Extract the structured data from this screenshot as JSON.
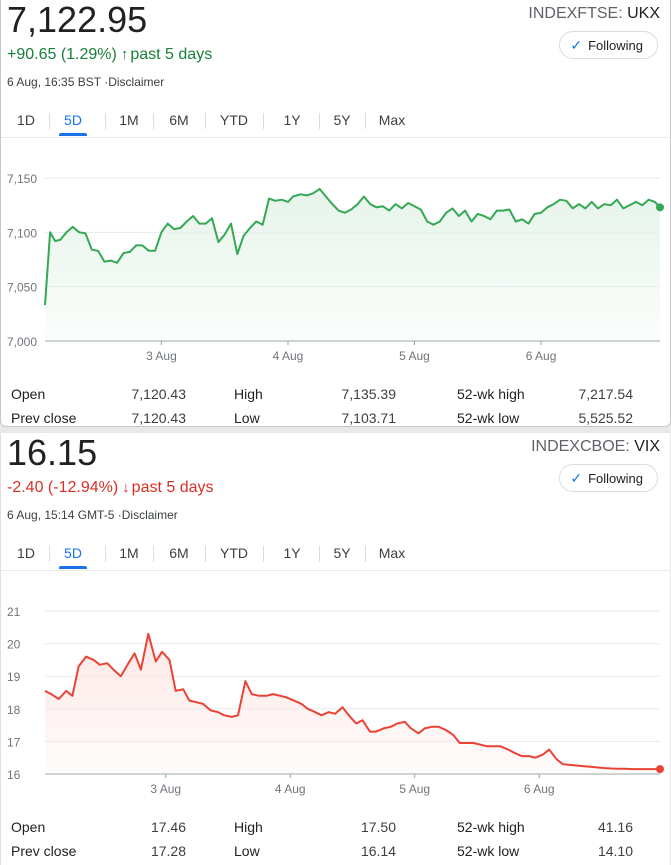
{
  "panels": [
    {
      "price": "7,122.95",
      "change": "+90.65 (1.29%)",
      "direction": "up",
      "change_arrow": "arrow-up-icon",
      "period": "past 5 days",
      "timestamp": "6 Aug, 16:35 BST",
      "disclaimer": "Disclaimer",
      "exchange": "INDEXFTSE:",
      "symbol": "UKX",
      "follow_label": "Following",
      "tabs": [
        "1D",
        "5D",
        "1M",
        "6M",
        "YTD",
        "1Y",
        "5Y",
        "Max"
      ],
      "active_tab": "5D",
      "stats": {
        "open_label": "Open",
        "open": "7,120.43",
        "prev_close_label": "Prev close",
        "prev_close": "7,120.43",
        "high_label": "High",
        "high": "7,135.39",
        "low_label": "Low",
        "low": "7,103.71",
        "wk52_high_label": "52-wk high",
        "wk52_high": "7,217.54",
        "wk52_low_label": "52-wk low",
        "wk52_low": "5,525.52"
      }
    },
    {
      "price": "16.15",
      "change": "-2.40 (-12.94%)",
      "direction": "down",
      "change_arrow": "arrow-down-icon",
      "period": "past 5 days",
      "timestamp": "6 Aug, 15:14 GMT-5",
      "disclaimer": "Disclaimer",
      "exchange": "INDEXCBOE:",
      "symbol": "VIX",
      "follow_label": "Following",
      "tabs": [
        "1D",
        "5D",
        "1M",
        "6M",
        "YTD",
        "1Y",
        "5Y",
        "Max"
      ],
      "active_tab": "5D",
      "stats": {
        "open_label": "Open",
        "open": "17.46",
        "prev_close_label": "Prev close",
        "prev_close": "17.28",
        "high_label": "High",
        "high": "17.50",
        "low_label": "Low",
        "low": "16.14",
        "wk52_high_label": "52-wk high",
        "wk52_high": "41.16",
        "wk52_low_label": "52-wk low",
        "wk52_low": "14.10"
      }
    }
  ],
  "chart_data": [
    {
      "type": "area",
      "color": "#34a853",
      "fill": "#e6f4ea",
      "x_domain": [
        2.08,
        6.94
      ],
      "ylim": [
        7000,
        7150
      ],
      "yticks": [
        7000,
        7050,
        7100,
        7150
      ],
      "ytick_labels": [
        "7,000",
        "7,050",
        "7,100",
        "7,150"
      ],
      "xticks": [
        3,
        4,
        5,
        6
      ],
      "xtick_labels": [
        "3 Aug",
        "4 Aug",
        "5 Aug",
        "6 Aug"
      ],
      "grid": true,
      "series": [
        {
          "x": [
            2.08,
            2.12,
            2.16,
            2.2,
            2.25,
            2.3,
            2.35,
            2.4,
            2.45,
            2.5,
            2.55,
            2.6,
            2.65,
            2.7,
            2.75,
            2.8,
            2.85,
            2.9,
            2.95,
            3.0,
            3.05,
            3.1,
            3.15,
            3.2,
            3.25,
            3.3,
            3.35,
            3.4,
            3.45,
            3.5,
            3.55,
            3.6,
            3.65,
            3.7,
            3.75,
            3.8,
            3.85,
            3.9,
            3.95,
            4.0,
            4.04,
            4.1,
            4.15,
            4.2,
            4.25,
            4.3,
            4.35,
            4.4,
            4.45,
            4.5,
            4.55,
            4.6,
            4.65,
            4.7,
            4.75,
            4.8,
            4.85,
            4.9,
            4.95,
            5.0,
            5.05,
            5.1,
            5.15,
            5.2,
            5.25,
            5.3,
            5.35,
            5.4,
            5.45,
            5.5,
            5.55,
            5.6,
            5.65,
            5.7,
            5.75,
            5.8,
            5.85,
            5.9,
            5.95,
            6.0,
            6.05,
            6.1,
            6.15,
            6.2,
            6.25,
            6.3,
            6.35,
            6.4,
            6.45,
            6.5,
            6.55,
            6.6,
            6.65,
            6.7,
            6.75,
            6.8,
            6.85,
            6.9,
            6.94
          ],
          "y": [
            7033,
            7100,
            7092,
            7093,
            7100,
            7105,
            7100,
            7099,
            7084,
            7083,
            7073,
            7074,
            7072,
            7081,
            7082,
            7088,
            7088,
            7083,
            7083,
            7100,
            7108,
            7103,
            7104,
            7110,
            7115,
            7108,
            7108,
            7113,
            7091,
            7098,
            7108,
            7080,
            7097,
            7104,
            7110,
            7107,
            7131,
            7129,
            7130,
            7128,
            7133,
            7135,
            7134,
            7136,
            7140,
            7133,
            7126,
            7120,
            7118,
            7121,
            7126,
            7133,
            7126,
            7123,
            7124,
            7120,
            7126,
            7122,
            7127,
            7124,
            7121,
            7110,
            7107,
            7110,
            7118,
            7122,
            7115,
            7120,
            7110,
            7117,
            7115,
            7112,
            7120,
            7120,
            7121,
            7110,
            7112,
            7108,
            7117,
            7118,
            7123,
            7126,
            7130,
            7129,
            7122,
            7126,
            7122,
            7128,
            7122,
            7126,
            7125,
            7130,
            7122,
            7125,
            7128,
            7125,
            7130,
            7128,
            7123
          ]
        }
      ]
    },
    {
      "type": "area",
      "color": "#ea4335",
      "fill": "#fce8e6",
      "x_domain": [
        2.03,
        6.97
      ],
      "ylim": [
        16,
        21
      ],
      "yticks": [
        16,
        17,
        18,
        19,
        20,
        21
      ],
      "ytick_labels": [
        "16",
        "17",
        "18",
        "19",
        "20",
        "21"
      ],
      "xticks": [
        3,
        4,
        5,
        6
      ],
      "xtick_labels": [
        "3 Aug",
        "4 Aug",
        "5 Aug",
        "6 Aug"
      ],
      "grid": true,
      "series": [
        {
          "x": [
            2.03,
            2.08,
            2.14,
            2.2,
            2.25,
            2.3,
            2.36,
            2.42,
            2.47,
            2.53,
            2.58,
            2.64,
            2.7,
            2.75,
            2.8,
            2.86,
            2.92,
            2.97,
            3.03,
            3.08,
            3.14,
            3.19,
            3.25,
            3.3,
            3.36,
            3.42,
            3.47,
            3.53,
            3.58,
            3.64,
            3.69,
            3.75,
            3.81,
            3.86,
            3.92,
            3.97,
            4.03,
            4.09,
            4.14,
            4.2,
            4.25,
            4.31,
            4.36,
            4.42,
            4.47,
            4.53,
            4.58,
            4.64,
            4.69,
            4.75,
            4.81,
            4.86,
            4.92,
            4.97,
            5.03,
            5.08,
            5.14,
            5.19,
            5.25,
            5.31,
            5.36,
            5.42,
            5.47,
            5.53,
            5.58,
            5.64,
            5.69,
            5.75,
            5.8,
            5.86,
            5.92,
            5.97,
            6.03,
            6.08,
            6.14,
            6.19,
            6.25,
            6.3,
            6.36,
            6.41,
            6.47,
            6.53,
            6.58,
            6.64,
            6.69,
            6.75,
            6.8,
            6.86,
            6.91,
            6.97
          ],
          "y": [
            18.55,
            18.45,
            18.3,
            18.55,
            18.4,
            19.3,
            19.6,
            19.5,
            19.35,
            19.4,
            19.2,
            19.0,
            19.4,
            19.7,
            19.2,
            20.3,
            19.45,
            19.75,
            19.5,
            18.55,
            18.6,
            18.25,
            18.2,
            18.15,
            17.95,
            17.9,
            17.8,
            17.75,
            17.8,
            18.85,
            18.45,
            18.4,
            18.4,
            18.45,
            18.4,
            18.35,
            18.25,
            18.15,
            18.0,
            17.9,
            17.8,
            17.9,
            17.85,
            18.05,
            17.8,
            17.55,
            17.65,
            17.3,
            17.3,
            17.4,
            17.45,
            17.55,
            17.6,
            17.4,
            17.25,
            17.4,
            17.45,
            17.45,
            17.35,
            17.2,
            16.95,
            16.95,
            16.95,
            16.9,
            16.85,
            16.85,
            16.85,
            16.75,
            16.65,
            16.55,
            16.55,
            16.5,
            16.6,
            16.75,
            16.45,
            16.3,
            16.28,
            16.26,
            16.24,
            16.22,
            16.2,
            16.18,
            16.17,
            16.16,
            16.16,
            16.15,
            16.15,
            16.15,
            16.15,
            16.15
          ]
        }
      ]
    }
  ]
}
